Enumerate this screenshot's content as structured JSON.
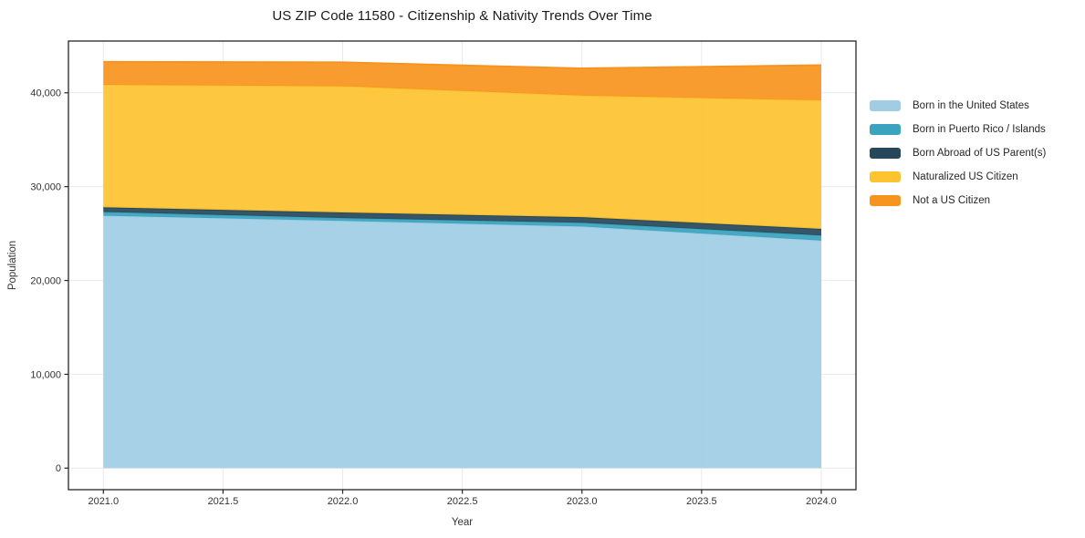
{
  "title": "US ZIP Code 11580 - Citizenship & Nativity Trends Over Time",
  "chart_data": {
    "type": "area",
    "stacked": true,
    "title": "US ZIP Code 11580 - Citizenship & Nativity Trends Over Time",
    "xlabel": "Year",
    "ylabel": "Population",
    "x": [
      2021,
      2022,
      2023,
      2024
    ],
    "series": [
      {
        "name": "Born in the United States",
        "color": "#a0cde4",
        "values": [
          26900,
          26350,
          25750,
          24250
        ]
      },
      {
        "name": "Born in Puerto Rico / Islands",
        "color": "#3aa3bd",
        "values": [
          400,
          300,
          400,
          550
        ]
      },
      {
        "name": "Born Abroad of US Parent(s)",
        "color": "#27485a",
        "values": [
          500,
          600,
          600,
          700
        ]
      },
      {
        "name": "Naturalized US Citizen",
        "color": "#fdc330",
        "values": [
          13050,
          13450,
          12950,
          13700
        ]
      },
      {
        "name": "Not a US Citizen",
        "color": "#f7941f",
        "values": [
          2450,
          2550,
          2900,
          3750
        ]
      }
    ],
    "totals": [
      43300,
      43250,
      42600,
      42950
    ],
    "x_tick_labels": [
      "2021.0",
      "2021.5",
      "2022.0",
      "2022.5",
      "2023.0",
      "2023.5",
      "2024.0"
    ],
    "x_tick_values": [
      2021,
      2021.5,
      2022,
      2022.5,
      2023,
      2023.5,
      2024
    ],
    "y_tick_labels": [
      "0",
      "10,000",
      "20,000",
      "30,000",
      "40,000"
    ],
    "y_tick_values": [
      0,
      10000,
      20000,
      30000,
      40000
    ],
    "xlim": [
      2020.854,
      2024.145
    ],
    "ylim": [
      -2300,
      45520
    ],
    "grid": true,
    "legend_position": "right",
    "colors": {
      "grid": "#e9e9e9",
      "spine": "#262626",
      "tick_label": "#333333",
      "axis_label": "#333333",
      "background": "#ffffff"
    }
  }
}
